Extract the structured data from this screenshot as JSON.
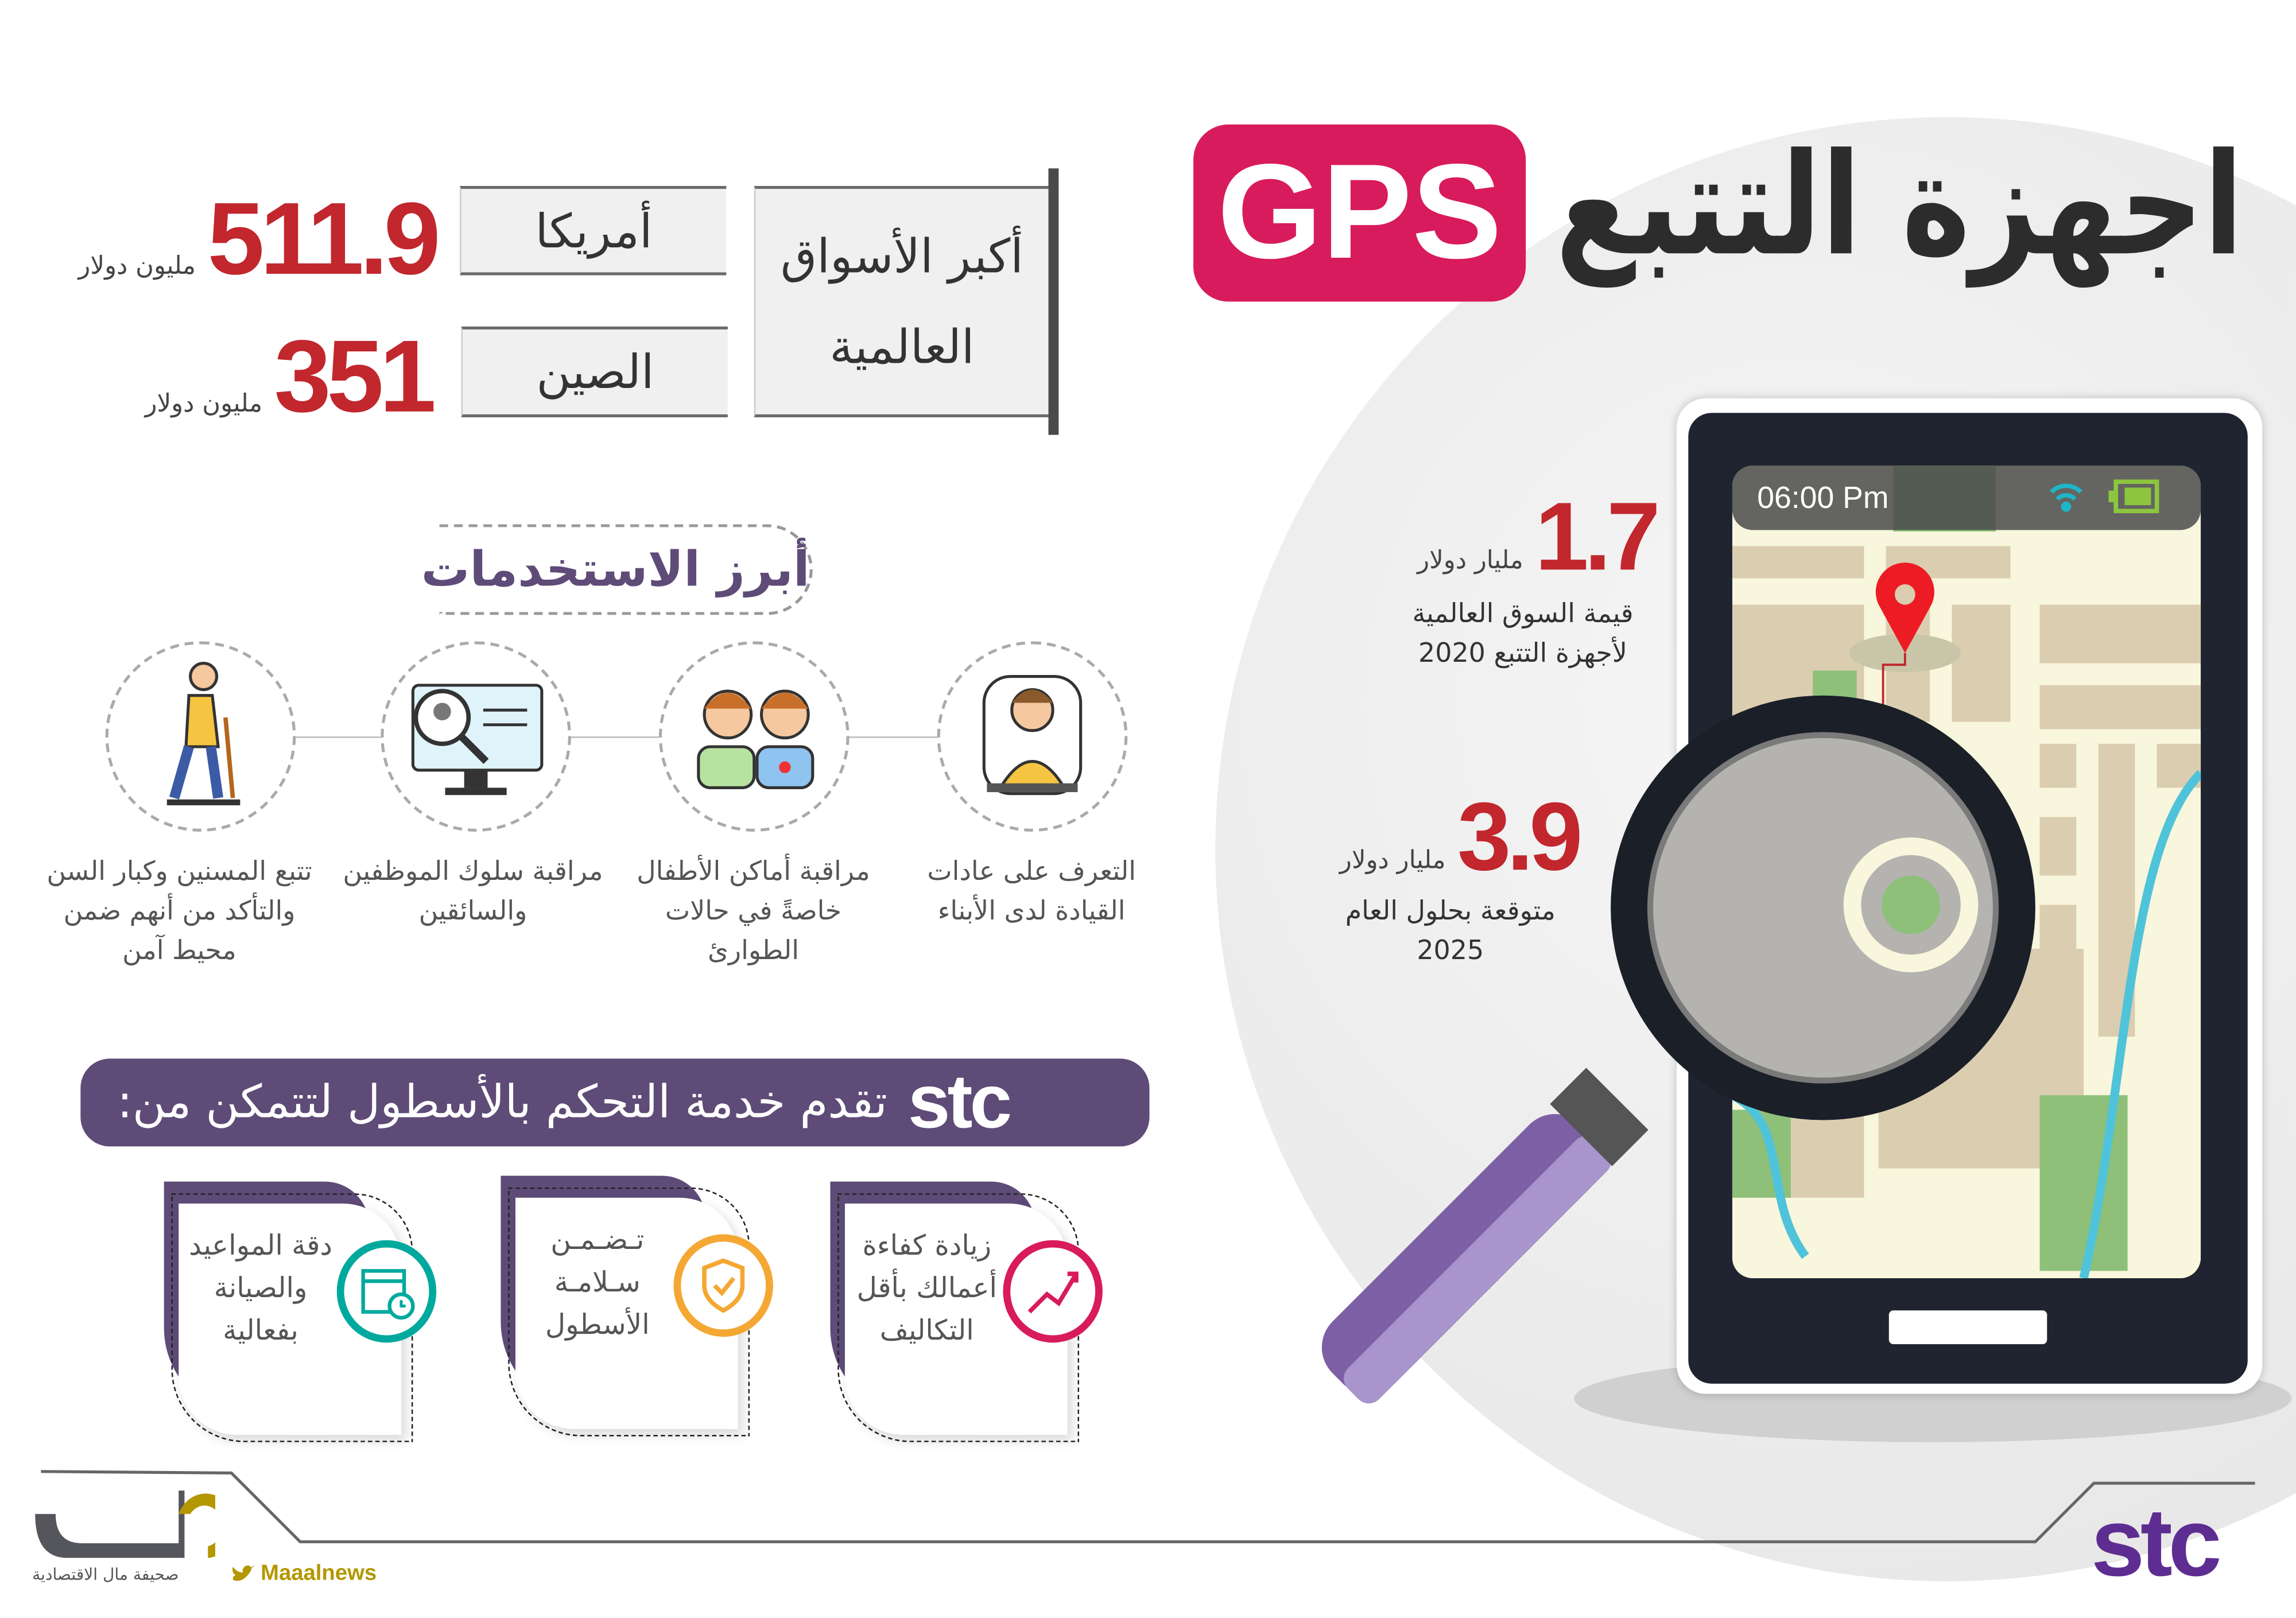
{
  "header": {
    "title": "اجهزة التتبع",
    "badge": "GPS"
  },
  "markets": {
    "heading": "أكبر الأسواق العالمية",
    "items": [
      {
        "country": "أمريكا",
        "value": "511.9",
        "unit": "مليون دولار"
      },
      {
        "country": "الصين",
        "value": "351",
        "unit": "مليون دولار"
      }
    ]
  },
  "stats": [
    {
      "value": "1.7",
      "unit": "مليار دولار",
      "line1": "قيمة السوق العالمية",
      "line2": "لأجهزة التتبع 2020"
    },
    {
      "value": "3.9",
      "unit": "مليار دولار",
      "line1": "متوقعة بحلول العام",
      "line2": "2025"
    }
  ],
  "phone": {
    "time": "06:00 Pm",
    "icons": [
      "wifi-icon",
      "battery-icon",
      "location-pin-icon",
      "magnifier-icon"
    ]
  },
  "uses": {
    "heading": "أبرز الاستخدمات",
    "items": [
      {
        "icon": "driver-icon",
        "text": "التعرف على عادات القيادة لدى الأبناء"
      },
      {
        "icon": "children-icon",
        "text": "مراقبة أماكن الأطفال خاصةً في حالات الطوارئ"
      },
      {
        "icon": "monitor-search-icon",
        "text": "مراقبة سلوك الموظفين والسائقين"
      },
      {
        "icon": "elderly-icon",
        "text": "تتبع المسنين وكبار السن والتأكد من أنهم ضمن محيط آمن"
      }
    ]
  },
  "banner": {
    "logo": "stc",
    "text": "تقدم خدمة التحكم بالأسطول لتتمكن من:"
  },
  "cards": [
    {
      "text": "زيادة كفاءة أعمالك بأقل التكاليف",
      "icon": "growth-runner-icon",
      "color": "#d81b5c"
    },
    {
      "text": "تـضـمـن سـلامـة الأسطول",
      "icon": "shield-hands-icon",
      "color": "#f5a733"
    },
    {
      "text": "دقة المواعيد والصيانة بفعالية",
      "icon": "calendar-clock-icon",
      "color": "#00a99d"
    }
  ],
  "footer": {
    "brand_ar": "صحيفة مال الاقتصادية",
    "twitter": "Maaalnews",
    "logo_left": "مال",
    "logo_right": "stc"
  },
  "colors": {
    "red": "#c1272d",
    "purple": "#5e4b77",
    "pink": "#d81b5c"
  }
}
